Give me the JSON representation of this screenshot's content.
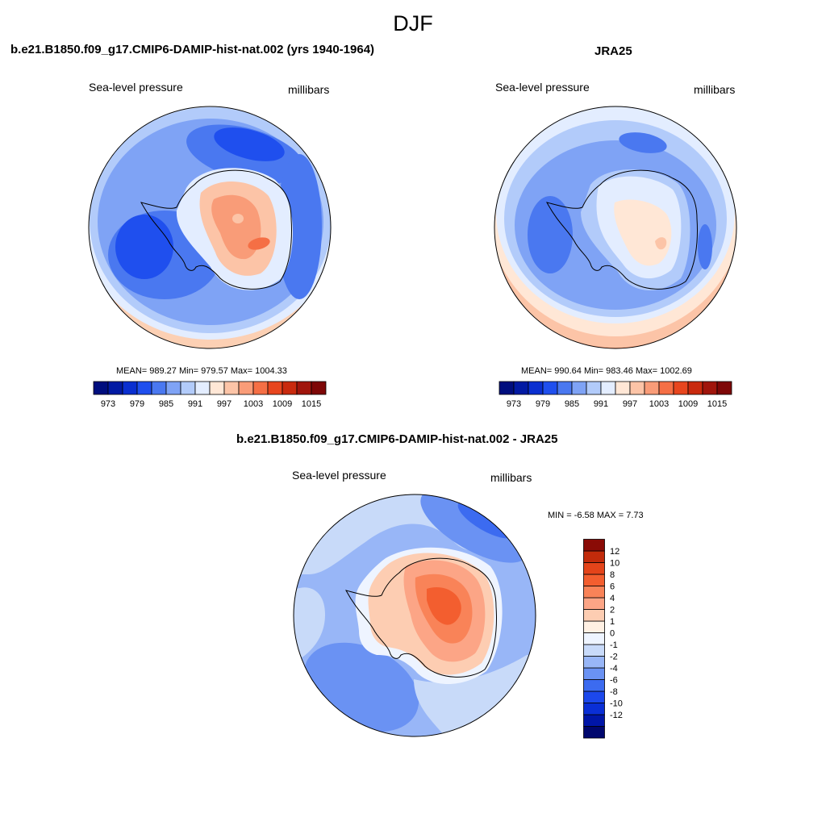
{
  "figure": {
    "title": "DJF"
  },
  "panels": [
    {
      "title": "b.e21.B1850.f09_g17.CMIP6-DAMIP-hist-nat.002 (yrs 1940-1964)",
      "left_label": "Sea-level pressure",
      "right_label": "millibars",
      "stats": "MEAN= 989.27  Min= 979.57  Max= 1004.33"
    },
    {
      "title": "JRA25",
      "left_label": "Sea-level pressure",
      "right_label": "millibars",
      "stats": "MEAN= 990.64  Min= 983.46  Max= 1002.69"
    },
    {
      "title": "b.e21.B1850.f09_g17.CMIP6-DAMIP-hist-nat.002 - JRA25",
      "left_label": "Sea-level pressure",
      "right_label": "millibars",
      "stats": "MIN =  -6.58 MAX =   7.73"
    }
  ],
  "colorbar_slp": {
    "colors": [
      "#000e7e",
      "#021aa3",
      "#0a2fd0",
      "#1f4fee",
      "#4a78f0",
      "#7fa3f5",
      "#b2cbfa",
      "#e3edff",
      "#ffe7d6",
      "#fcc4a7",
      "#f99c78",
      "#f56f45",
      "#e8461e",
      "#c92a0e",
      "#a0150c",
      "#7e0707"
    ],
    "labels": [
      "973",
      "979",
      "985",
      "991",
      "997",
      "1003",
      "1009",
      "1015"
    ]
  },
  "colorbar_diff": {
    "colors": [
      "#00076e",
      "#0016a8",
      "#0a2fd6",
      "#1c48ec",
      "#3c6bf0",
      "#6a92f3",
      "#98b6f7",
      "#c8daf9",
      "#eef4ff",
      "#fff0e3",
      "#fdcdb2",
      "#fca586",
      "#f98358",
      "#f35e2f",
      "#e4441a",
      "#c22b0b",
      "#8a0b06"
    ],
    "labels": [
      "12",
      "10",
      "8",
      "6",
      "4",
      "2",
      "1",
      "0",
      "-1",
      "-2",
      "-4",
      "-6",
      "-8",
      "-10",
      "-12"
    ]
  },
  "chart_data": [
    {
      "type": "heatmap",
      "title": "b.e21.B1850.f09_g17.CMIP6-DAMIP-hist-nat.002 (yrs 1940-1964)",
      "variable": "Sea-level pressure",
      "units": "millibars",
      "projection": "south polar stereographic",
      "stats": {
        "mean": 989.27,
        "min": 979.57,
        "max": 1004.33
      },
      "contour_levels": [
        973,
        976,
        979,
        982,
        985,
        988,
        991,
        994,
        997,
        1000,
        1003,
        1006,
        1009,
        1012,
        1015
      ]
    },
    {
      "type": "heatmap",
      "title": "JRA25",
      "variable": "Sea-level pressure",
      "units": "millibars",
      "projection": "south polar stereographic",
      "stats": {
        "mean": 990.64,
        "min": 983.46,
        "max": 1002.69
      },
      "contour_levels": [
        973,
        976,
        979,
        982,
        985,
        988,
        991,
        994,
        997,
        1000,
        1003,
        1006,
        1009,
        1012,
        1015
      ]
    },
    {
      "type": "heatmap",
      "title": "b.e21.B1850.f09_g17.CMIP6-DAMIP-hist-nat.002 - JRA25",
      "variable": "Sea-level pressure",
      "units": "millibars",
      "projection": "south polar stereographic",
      "stats": {
        "min": -6.58,
        "max": 7.73
      },
      "contour_levels": [
        -12,
        -10,
        -8,
        -6,
        -4,
        -2,
        -1,
        0,
        1,
        2,
        4,
        6,
        8,
        10,
        12
      ]
    }
  ]
}
